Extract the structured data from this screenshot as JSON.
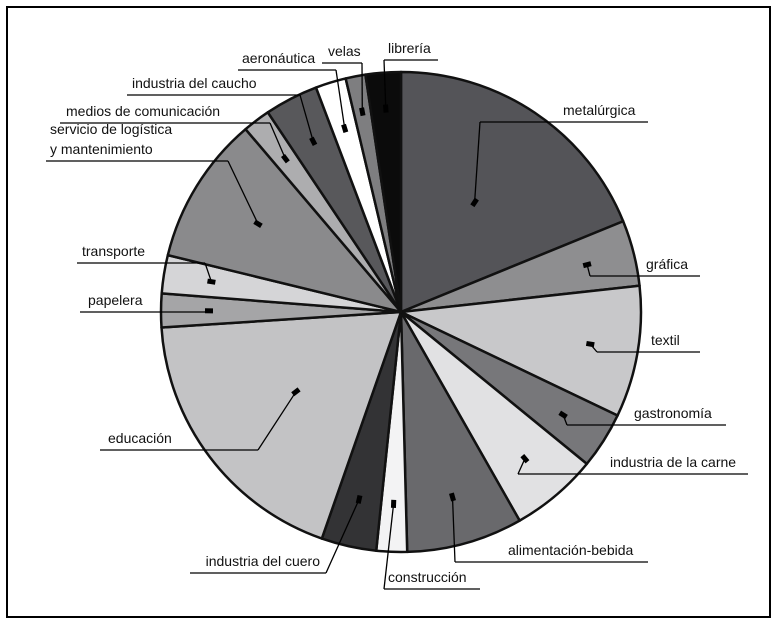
{
  "chart_data": {
    "type": "pie",
    "title": "",
    "slices": [
      {
        "label": "metalúrgica",
        "value": 18.3,
        "color": "#545458"
      },
      {
        "label": "gráfica",
        "value": 4.3,
        "color": "#8e8e90"
      },
      {
        "label": "textil",
        "value": 8.6,
        "color": "#c8c8ca"
      },
      {
        "label": "gastronomía",
        "value": 3.7,
        "color": "#77777a"
      },
      {
        "label": "industria de la carne",
        "value": 5.7,
        "color": "#e1e1e3"
      },
      {
        "label": "alimentación-bebida",
        "value": 7.6,
        "color": "#69696c"
      },
      {
        "label": "construcción",
        "value": 2.0,
        "color": "#f3f3f4"
      },
      {
        "label": "industria del cuero",
        "value": 3.6,
        "color": "#333335"
      },
      {
        "label": "educación",
        "value": 18.1,
        "color": "#c3c3c5"
      },
      {
        "label": "papelera",
        "value": 2.2,
        "color": "#a5a5a7"
      },
      {
        "label": "transporte",
        "value": 2.5,
        "color": "#d5d5d7"
      },
      {
        "label": "servicio de logística y mantenimiento",
        "label_lines": [
          "servicio de logística",
          "y mantenimiento"
        ],
        "value": 9.7,
        "color": "#8a8a8c"
      },
      {
        "label": "medios de comunicación",
        "value": 1.8,
        "color": "#adadaf"
      },
      {
        "label": "industria del caucho",
        "value": 3.5,
        "color": "#58585b"
      },
      {
        "label": "aeronáutica",
        "value": 2.0,
        "color": "#ffffff"
      },
      {
        "label": "velas",
        "value": 1.3,
        "color": "#7e7e80"
      },
      {
        "label": "librería",
        "value": 2.3,
        "color": "#0b0b0b"
      }
    ],
    "legend": "none"
  }
}
